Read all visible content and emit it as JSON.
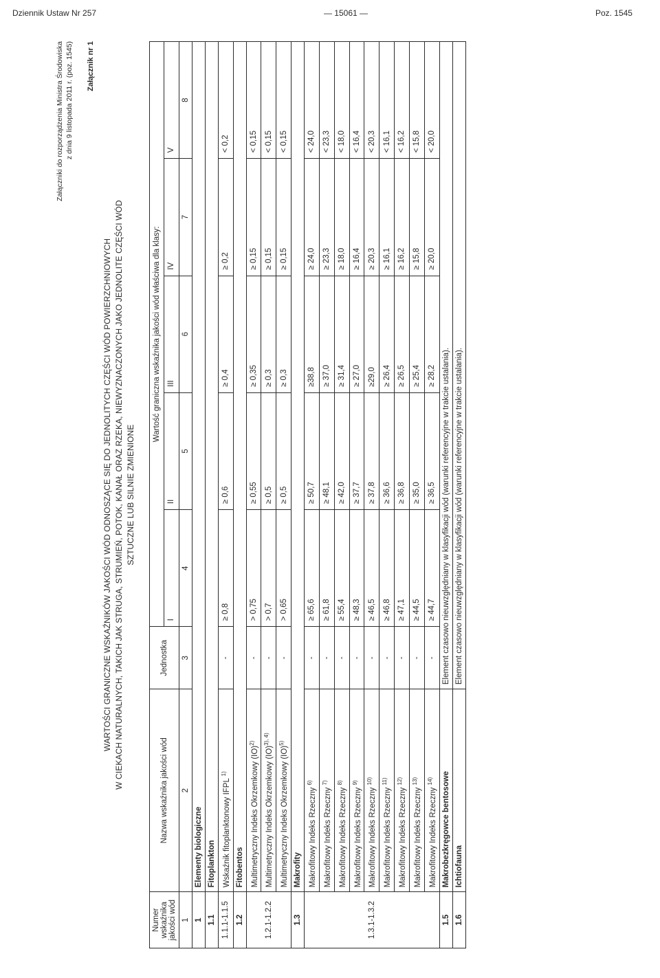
{
  "header": {
    "left": "Dziennik Ustaw Nr 257",
    "center": "— 15061 —",
    "right": "Poz. 1545"
  },
  "reference": {
    "line1": "Załączniki do rozporządzenia Ministra Środowiska",
    "line2": "z dnia 9 listopada 2011 r. (poz. 1545)"
  },
  "annex": "Załącznik nr 1",
  "title": {
    "l1": "WARTOŚCI GRANICZNE WSKAŹNIKÓW JAKOŚCI WÓD ODNOSZĄCE SIĘ DO JEDNOLITYCH CZĘŚCI WÓD POWIERZCHNIOWYCH",
    "l2": "W CIEKACH NATURALNYCH, TAKICH JAK STRUGA, STRUMIEŃ, POTOK, KANAŁ ORAZ RZEKA, NIEWYZNACZONYCH JAKO JEDNOLITE CZĘŚCI WÓD",
    "l3": "SZTUCZNE LUB SILNIE ZMIENIONE"
  },
  "tableHead": {
    "numer": "Numer wskaźnika jakości wód",
    "nazwa": "Nazwa wskaźnika jakości wód",
    "jednostka": "Jednostka",
    "wartosc": "Wartość graniczna wskaźnika jakości wód właściwa dla klasy:",
    "classes": [
      "I",
      "II",
      "III",
      "IV",
      "V"
    ],
    "colnums": [
      "1",
      "2",
      "3",
      "4",
      "5",
      "6",
      "7",
      "8"
    ]
  },
  "rows": {
    "sec1": {
      "num": "1",
      "label": "Elementy biologiczne"
    },
    "sec11": {
      "num": "1.1",
      "label": "Fitoplankton"
    },
    "r111_115": {
      "num": "1.1.1-1.1.5",
      "name": "Wskaźnik fitoplanktonowy IFPL",
      "sup": "1)",
      "unit": "-",
      "v": [
        "≥ 0,8",
        "≥ 0,6",
        "≥ 0,4",
        "≥ 0,2",
        "< 0,2"
      ]
    },
    "sec12": {
      "num": "1.2",
      "label": "Fitobentos"
    },
    "r121_122_a": {
      "num": "1.2.1-1.2.2",
      "name": "Multimetryczny Indeks Okrzemkowy (IO)",
      "sup": "2)",
      "unit": "-",
      "v": [
        "> 0,75",
        "≥ 0,55",
        "≥ 0,35",
        "≥ 0,15",
        "< 0,15"
      ]
    },
    "r121_122_b": {
      "name": "Multimetryczny Indeks Okrzemkowy (IO)",
      "sup": "3), 4)",
      "unit": "-",
      "v": [
        "> 0,7",
        "≥ 0,5",
        "≥ 0,3",
        "≥ 0,15",
        "< 0,15"
      ]
    },
    "r121_122_c": {
      "name": "Multimetryczny Indeks Okrzemkowy (IO)",
      "sup": "5)",
      "unit": "-",
      "v": [
        "> 0,65",
        "≥ 0,5",
        "≥ 0,3",
        "≥ 0,15",
        "< 0,15"
      ]
    },
    "sec13": {
      "num": "1.3",
      "label": "Makrofity"
    },
    "mir": [
      {
        "sup": "6)",
        "v": [
          "≥ 65,6",
          "≥ 50,7",
          "≥38,8",
          "≥ 24,0",
          "< 24,0"
        ]
      },
      {
        "sup": "7)",
        "v": [
          "≥ 61,8",
          "≥ 48,1",
          "≥ 37,0",
          "≥ 23,3",
          "< 23,3"
        ]
      },
      {
        "sup": "8)",
        "v": [
          "≥ 55,4",
          "≥ 42,0",
          "≥ 31,4",
          "≥ 18,0",
          "< 18,0"
        ]
      },
      {
        "sup": "9)",
        "v": [
          "≥ 48,3",
          "≥ 37,7",
          "≥ 27,0",
          "≥ 16,4",
          "< 16,4"
        ]
      },
      {
        "sup": "10)",
        "v": [
          "≥ 46,5",
          "≥ 37,8",
          "≥29,0",
          "≥ 20,3",
          "< 20,3"
        ]
      },
      {
        "sup": "11)",
        "v": [
          "≥ 46,8",
          "≥ 36,6",
          "≥ 26,4",
          "≥ 16,1",
          "< 16,1"
        ]
      },
      {
        "sup": "12)",
        "v": [
          "≥ 47,1",
          "≥ 36,8",
          "≥ 26,5",
          "≥ 16,2",
          "< 16,2"
        ]
      },
      {
        "sup": "13)",
        "v": [
          "≥ 44,5",
          "≥ 35,0",
          "≥ 25,4",
          "≥ 15,8",
          "< 15,8"
        ]
      },
      {
        "sup": "14)",
        "v": [
          "≥ 44,7",
          "≥ 36,5",
          "≥ 28,2",
          "≥ 20,0",
          "< 20,0"
        ]
      }
    ],
    "mir_name": "Makrofitowy Indeks Rzeczny",
    "mir_num": "1.3.1-1.3.2",
    "mir_unit": "-",
    "sec15": {
      "num": "1.5",
      "label": "Makrobezkręgowce bentosowe",
      "note": "Element czasowo nieuwzględniany w klasyfikacji wód (warunki referencyjne w trakcie ustalania)."
    },
    "sec16": {
      "num": "1.6",
      "label": "Ichtiofauna",
      "note": "Element czasowo nieuwzględniany w klasyfikacji wód (warunki referencyjne w trakcie ustalania)."
    }
  }
}
